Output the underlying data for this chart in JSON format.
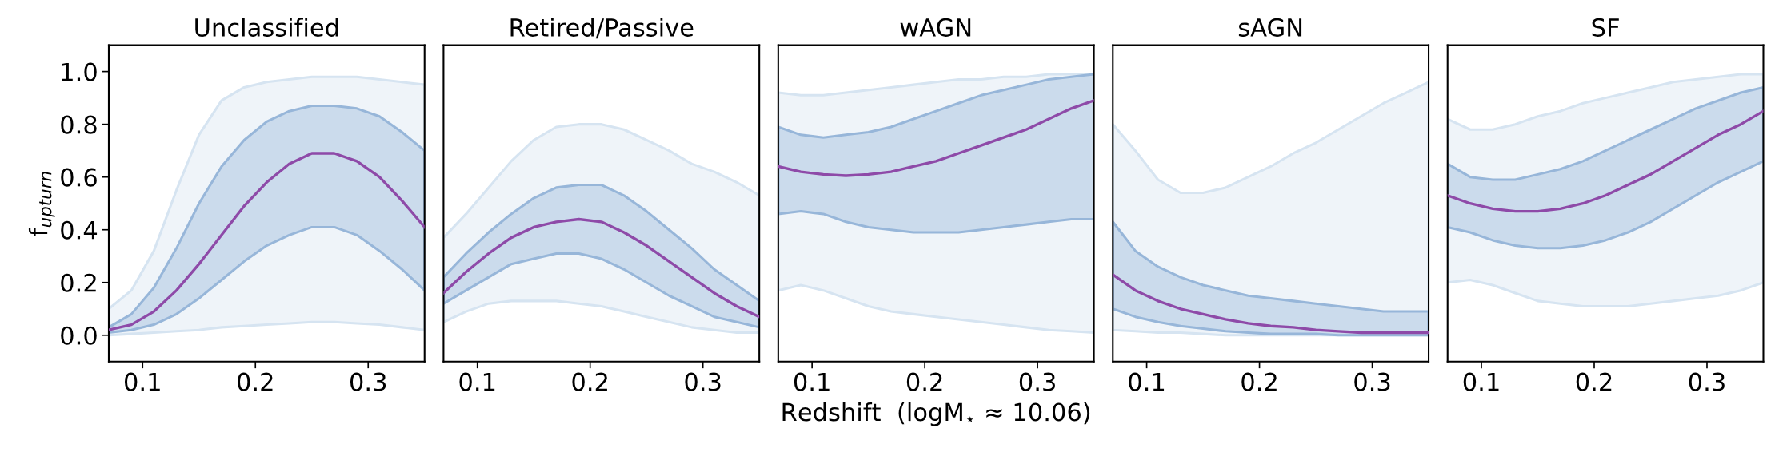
{
  "chart_data": [
    {
      "type": "line",
      "title": "Unclassified",
      "ylabel": "f$_{upturn}$",
      "xlim": [
        0.07,
        0.35
      ],
      "xticks": [
        0.1,
        0.2,
        0.3
      ],
      "ylim": [
        -0.1,
        1.1
      ],
      "yticks": [
        {
          "value": 0,
          "label": "0.0"
        },
        0.2,
        0.4,
        0.6,
        0.8,
        {
          "value": 1,
          "label": "1.0"
        }
      ],
      "x": [
        0.07,
        0.09,
        0.11,
        0.13,
        0.15,
        0.17,
        0.19,
        0.21,
        0.23,
        0.25,
        0.27,
        0.29,
        0.31,
        0.33,
        0.35
      ],
      "series": [
        {
          "color": "#d6e4f1",
          "values": [
            null,
            null,
            null,
            null,
            null,
            null,
            null,
            null,
            null,
            null,
            null,
            null,
            null,
            null,
            null
          ],
          "lower": [
            0,
            0.005,
            0.01,
            0.015,
            0.02,
            0.03,
            0.035,
            0.04,
            0.045,
            0.05,
            0.05,
            0.045,
            0.04,
            0.03,
            0.02
          ],
          "upper": [
            0.1,
            0.17,
            0.32,
            0.55,
            0.76,
            0.89,
            0.94,
            0.96,
            0.97,
            0.98,
            0.98,
            0.98,
            0.97,
            0.96,
            0.95
          ]
        },
        {
          "color": "#97b6d9",
          "values": [
            null,
            null,
            null,
            null,
            null,
            null,
            null,
            null,
            null,
            null,
            null,
            null,
            null,
            null,
            null
          ],
          "lower": [
            0.01,
            0.02,
            0.04,
            0.08,
            0.14,
            0.21,
            0.28,
            0.34,
            0.38,
            0.41,
            0.41,
            0.38,
            0.32,
            0.25,
            0.17
          ],
          "upper": [
            0.03,
            0.08,
            0.18,
            0.33,
            0.5,
            0.64,
            0.74,
            0.81,
            0.85,
            0.87,
            0.87,
            0.86,
            0.83,
            0.77,
            0.7
          ]
        },
        {
          "color": "#8e4aa8",
          "values": [
            0.02,
            0.04,
            0.09,
            0.17,
            0.27,
            0.38,
            0.49,
            0.58,
            0.65,
            0.69,
            0.69,
            0.66,
            0.6,
            0.51,
            0.41
          ]
        }
      ]
    },
    {
      "type": "line",
      "title": "Retired/Passive",
      "tick_labels": "x",
      "xlim": [
        0.07,
        0.35
      ],
      "xticks": [
        0.1,
        0.2,
        0.3
      ],
      "ylim": [
        -0.1,
        1.1
      ],
      "x": [
        0.07,
        0.09,
        0.11,
        0.13,
        0.15,
        0.17,
        0.19,
        0.21,
        0.23,
        0.25,
        0.27,
        0.29,
        0.31,
        0.33,
        0.35
      ],
      "series": [
        {
          "color": "#d6e4f1",
          "values": [
            null,
            null,
            null,
            null,
            null,
            null,
            null,
            null,
            null,
            null,
            null,
            null,
            null,
            null,
            null
          ],
          "lower": [
            0.05,
            0.09,
            0.12,
            0.13,
            0.13,
            0.13,
            0.12,
            0.11,
            0.09,
            0.07,
            0.05,
            0.03,
            0.02,
            0.01,
            0.01
          ],
          "upper": [
            0.37,
            0.46,
            0.56,
            0.66,
            0.74,
            0.79,
            0.8,
            0.8,
            0.78,
            0.74,
            0.7,
            0.65,
            0.62,
            0.58,
            0.53
          ]
        },
        {
          "color": "#97b6d9",
          "values": [
            null,
            null,
            null,
            null,
            null,
            null,
            null,
            null,
            null,
            null,
            null,
            null,
            null,
            null,
            null
          ],
          "lower": [
            0.12,
            0.17,
            0.22,
            0.27,
            0.29,
            0.31,
            0.31,
            0.29,
            0.25,
            0.2,
            0.15,
            0.11,
            0.07,
            0.05,
            0.03
          ],
          "upper": [
            0.22,
            0.31,
            0.39,
            0.46,
            0.52,
            0.56,
            0.57,
            0.57,
            0.53,
            0.47,
            0.4,
            0.33,
            0.25,
            0.19,
            0.13
          ]
        },
        {
          "color": "#8e4aa8",
          "values": [
            0.16,
            0.24,
            0.31,
            0.37,
            0.41,
            0.43,
            0.44,
            0.43,
            0.39,
            0.34,
            0.28,
            0.22,
            0.16,
            0.11,
            0.07
          ]
        }
      ]
    },
    {
      "type": "line",
      "title": "wAGN",
      "xlabel": "Redshift  (logM$_{⋆}$ ≈ 10.06)",
      "tick_labels": "x",
      "xlim": [
        0.07,
        0.35
      ],
      "xticks": [
        0.1,
        0.2,
        0.3
      ],
      "ylim": [
        -0.1,
        1.1
      ],
      "x": [
        0.07,
        0.09,
        0.11,
        0.13,
        0.15,
        0.17,
        0.19,
        0.21,
        0.23,
        0.25,
        0.27,
        0.29,
        0.31,
        0.33,
        0.35
      ],
      "series": [
        {
          "color": "#d6e4f1",
          "values": [
            null,
            null,
            null,
            null,
            null,
            null,
            null,
            null,
            null,
            null,
            null,
            null,
            null,
            null,
            null
          ],
          "lower": [
            0.17,
            0.19,
            0.17,
            0.14,
            0.11,
            0.09,
            0.08,
            0.07,
            0.06,
            0.05,
            0.04,
            0.03,
            0.02,
            0.015,
            0.01
          ],
          "upper": [
            0.92,
            0.91,
            0.91,
            0.92,
            0.93,
            0.94,
            0.95,
            0.96,
            0.97,
            0.97,
            0.98,
            0.98,
            0.99,
            0.99,
            0.99
          ]
        },
        {
          "color": "#97b6d9",
          "values": [
            null,
            null,
            null,
            null,
            null,
            null,
            null,
            null,
            null,
            null,
            null,
            null,
            null,
            null,
            null
          ],
          "lower": [
            0.46,
            0.47,
            0.46,
            0.43,
            0.41,
            0.4,
            0.39,
            0.39,
            0.39,
            0.4,
            0.41,
            0.42,
            0.43,
            0.44,
            0.44
          ],
          "upper": [
            0.79,
            0.76,
            0.75,
            0.76,
            0.77,
            0.79,
            0.82,
            0.85,
            0.88,
            0.91,
            0.93,
            0.95,
            0.97,
            0.98,
            0.99
          ]
        },
        {
          "color": "#8e4aa8",
          "values": [
            0.64,
            0.62,
            0.61,
            0.605,
            0.61,
            0.62,
            0.64,
            0.66,
            0.69,
            0.72,
            0.75,
            0.78,
            0.82,
            0.86,
            0.89
          ]
        }
      ]
    },
    {
      "type": "line",
      "title": "sAGN",
      "tick_labels": "x",
      "xlim": [
        0.07,
        0.35
      ],
      "xticks": [
        0.1,
        0.2,
        0.3
      ],
      "ylim": [
        -0.1,
        1.1
      ],
      "x": [
        0.07,
        0.09,
        0.11,
        0.13,
        0.15,
        0.17,
        0.19,
        0.21,
        0.23,
        0.25,
        0.27,
        0.29,
        0.31,
        0.33,
        0.35
      ],
      "series": [
        {
          "color": "#d6e4f1",
          "values": [
            null,
            null,
            null,
            null,
            null,
            null,
            null,
            null,
            null,
            null,
            null,
            null,
            null,
            null,
            null
          ],
          "lower": [
            0.02,
            0.015,
            0.01,
            0.01,
            0.005,
            0,
            0,
            0,
            0,
            0,
            0,
            0,
            0,
            0,
            0
          ],
          "upper": [
            0.8,
            0.7,
            0.59,
            0.54,
            0.54,
            0.56,
            0.6,
            0.64,
            0.69,
            0.73,
            0.78,
            0.83,
            0.88,
            0.92,
            0.96
          ]
        },
        {
          "color": "#97b6d9",
          "values": [
            null,
            null,
            null,
            null,
            null,
            null,
            null,
            null,
            null,
            null,
            null,
            null,
            null,
            null,
            null
          ],
          "lower": [
            0.1,
            0.07,
            0.05,
            0.035,
            0.025,
            0.015,
            0.01,
            0.005,
            0.005,
            0.005,
            0,
            0,
            0,
            0,
            0
          ],
          "upper": [
            0.43,
            0.32,
            0.26,
            0.22,
            0.19,
            0.17,
            0.15,
            0.14,
            0.13,
            0.12,
            0.11,
            0.1,
            0.09,
            0.09,
            0.09
          ]
        },
        {
          "color": "#8e4aa8",
          "values": [
            0.23,
            0.17,
            0.13,
            0.1,
            0.08,
            0.06,
            0.045,
            0.035,
            0.03,
            0.02,
            0.015,
            0.01,
            0.01,
            0.01,
            0.01
          ]
        }
      ]
    },
    {
      "type": "line",
      "title": "SF",
      "tick_labels": "x",
      "xlim": [
        0.07,
        0.35
      ],
      "xticks": [
        0.1,
        0.2,
        0.3
      ],
      "ylim": [
        -0.1,
        1.1
      ],
      "x": [
        0.07,
        0.09,
        0.11,
        0.13,
        0.15,
        0.17,
        0.19,
        0.21,
        0.23,
        0.25,
        0.27,
        0.29,
        0.31,
        0.33,
        0.35
      ],
      "series": [
        {
          "color": "#d6e4f1",
          "values": [
            null,
            null,
            null,
            null,
            null,
            null,
            null,
            null,
            null,
            null,
            null,
            null,
            null,
            null,
            null
          ],
          "lower": [
            0.2,
            0.21,
            0.19,
            0.16,
            0.13,
            0.12,
            0.11,
            0.11,
            0.11,
            0.12,
            0.13,
            0.14,
            0.15,
            0.17,
            0.2
          ],
          "upper": [
            0.82,
            0.78,
            0.78,
            0.8,
            0.83,
            0.85,
            0.88,
            0.9,
            0.92,
            0.94,
            0.96,
            0.97,
            0.98,
            0.99,
            0.99
          ]
        },
        {
          "color": "#97b6d9",
          "values": [
            null,
            null,
            null,
            null,
            null,
            null,
            null,
            null,
            null,
            null,
            null,
            null,
            null,
            null,
            null
          ],
          "lower": [
            0.41,
            0.39,
            0.36,
            0.34,
            0.33,
            0.33,
            0.34,
            0.36,
            0.39,
            0.43,
            0.48,
            0.53,
            0.58,
            0.62,
            0.66
          ],
          "upper": [
            0.65,
            0.6,
            0.59,
            0.59,
            0.61,
            0.63,
            0.66,
            0.7,
            0.74,
            0.78,
            0.82,
            0.86,
            0.89,
            0.92,
            0.94
          ]
        },
        {
          "color": "#8e4aa8",
          "values": [
            0.53,
            0.5,
            0.48,
            0.47,
            0.47,
            0.48,
            0.5,
            0.53,
            0.57,
            0.61,
            0.66,
            0.71,
            0.76,
            0.8,
            0.85
          ]
        }
      ]
    }
  ]
}
